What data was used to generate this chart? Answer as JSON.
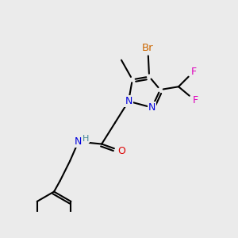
{
  "bg_color": "#ebebeb",
  "bond_color": "#000000",
  "bond_lw": 1.5,
  "doff": 0.006,
  "figsize": [
    3.0,
    3.0
  ],
  "dpi": 100,
  "colors": {
    "Br": "#cc6600",
    "F": "#dd00bb",
    "N": "#0000dd",
    "O": "#dd0000",
    "H": "#448899",
    "C": "#000000"
  },
  "lfs": 9.0,
  "lbg": "#ebebeb"
}
